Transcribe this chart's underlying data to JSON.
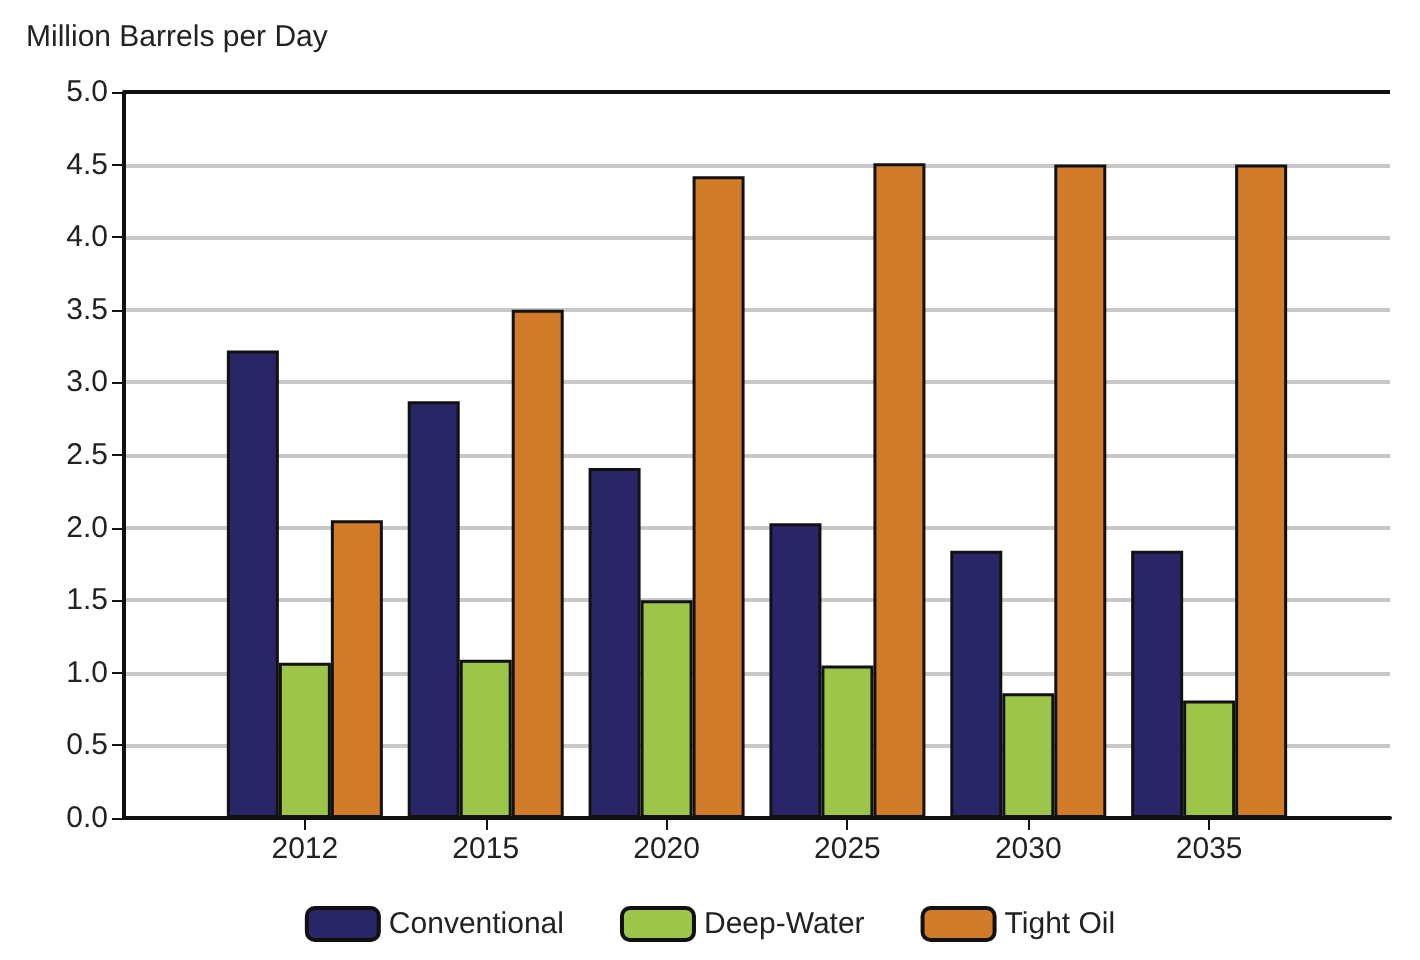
{
  "chart_data": {
    "type": "bar",
    "ylabel": "Million Barrels per Day",
    "categories": [
      null,
      "2012",
      "2015",
      "2020",
      "2025",
      "2030",
      "2035",
      null
    ],
    "series": [
      {
        "name": "Conventional",
        "color": "#2a2566",
        "values": [
          null,
          3.22,
          2.87,
          2.41,
          2.03,
          1.84,
          1.84,
          null
        ]
      },
      {
        "name": "Deep-Water",
        "color": "#9cc54a",
        "values": [
          null,
          1.07,
          1.09,
          1.5,
          1.05,
          0.86,
          0.81,
          null
        ]
      },
      {
        "name": "Tight Oil",
        "color": "#d27c29",
        "values": [
          null,
          2.05,
          3.5,
          4.42,
          4.51,
          4.5,
          4.5,
          null
        ]
      }
    ],
    "ylim": [
      0,
      5
    ],
    "yticks": [
      {
        "value": 0,
        "label": "0.0"
      },
      0.5,
      {
        "value": 1,
        "label": "1.0"
      },
      1.5,
      {
        "value": 2,
        "label": "2.0"
      },
      2.5,
      {
        "value": 3,
        "label": "3.0"
      },
      3.5,
      {
        "value": 4,
        "label": "4.0"
      },
      4.5,
      {
        "value": 5,
        "label": "5.0"
      }
    ],
    "grid": "y",
    "legend": "bottom"
  }
}
